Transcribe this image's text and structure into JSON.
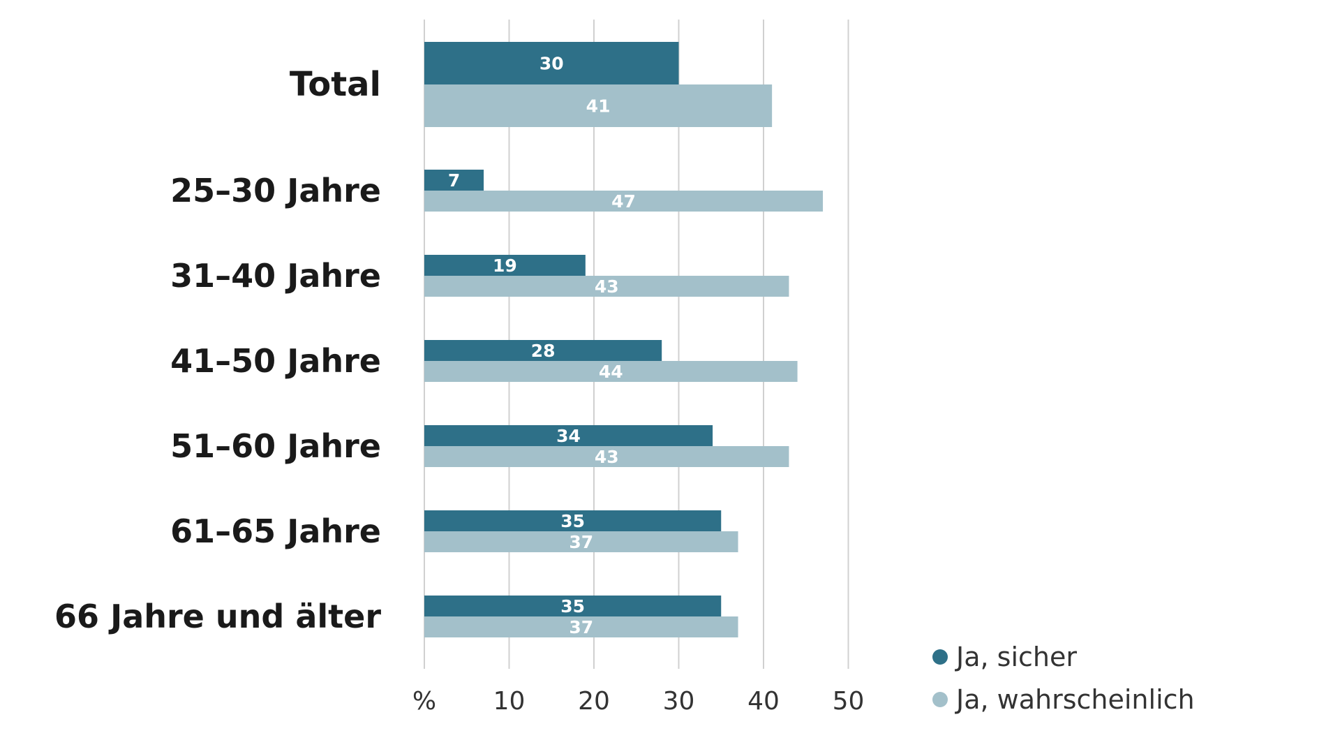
{
  "chart_data": {
    "type": "bar",
    "orientation": "horizontal",
    "categories": [
      "Total",
      "25–30 Jahre",
      "31–40 Jahre",
      "41–50 Jahre",
      "51–60 Jahre",
      "61–65 Jahre",
      "66 Jahre und älter"
    ],
    "series": [
      {
        "name": "Ja, sicher",
        "color": "#2e7088",
        "values": [
          30,
          7,
          19,
          28,
          34,
          35,
          35
        ]
      },
      {
        "name": "Ja, wahrscheinlich",
        "color": "#a3c0ca",
        "values": [
          41,
          47,
          43,
          44,
          43,
          37,
          37
        ]
      }
    ],
    "xlim": [
      0,
      50
    ],
    "xticks": [
      {
        "value": 0,
        "label": "%"
      },
      {
        "value": 10,
        "label": "10"
      },
      {
        "value": 20,
        "label": "20"
      },
      {
        "value": 30,
        "label": "30"
      },
      {
        "value": 40,
        "label": "40"
      },
      {
        "value": 50,
        "label": "50"
      }
    ],
    "grid": true,
    "legend": "bottom-right",
    "title": "",
    "xlabel": "",
    "ylabel": ""
  }
}
